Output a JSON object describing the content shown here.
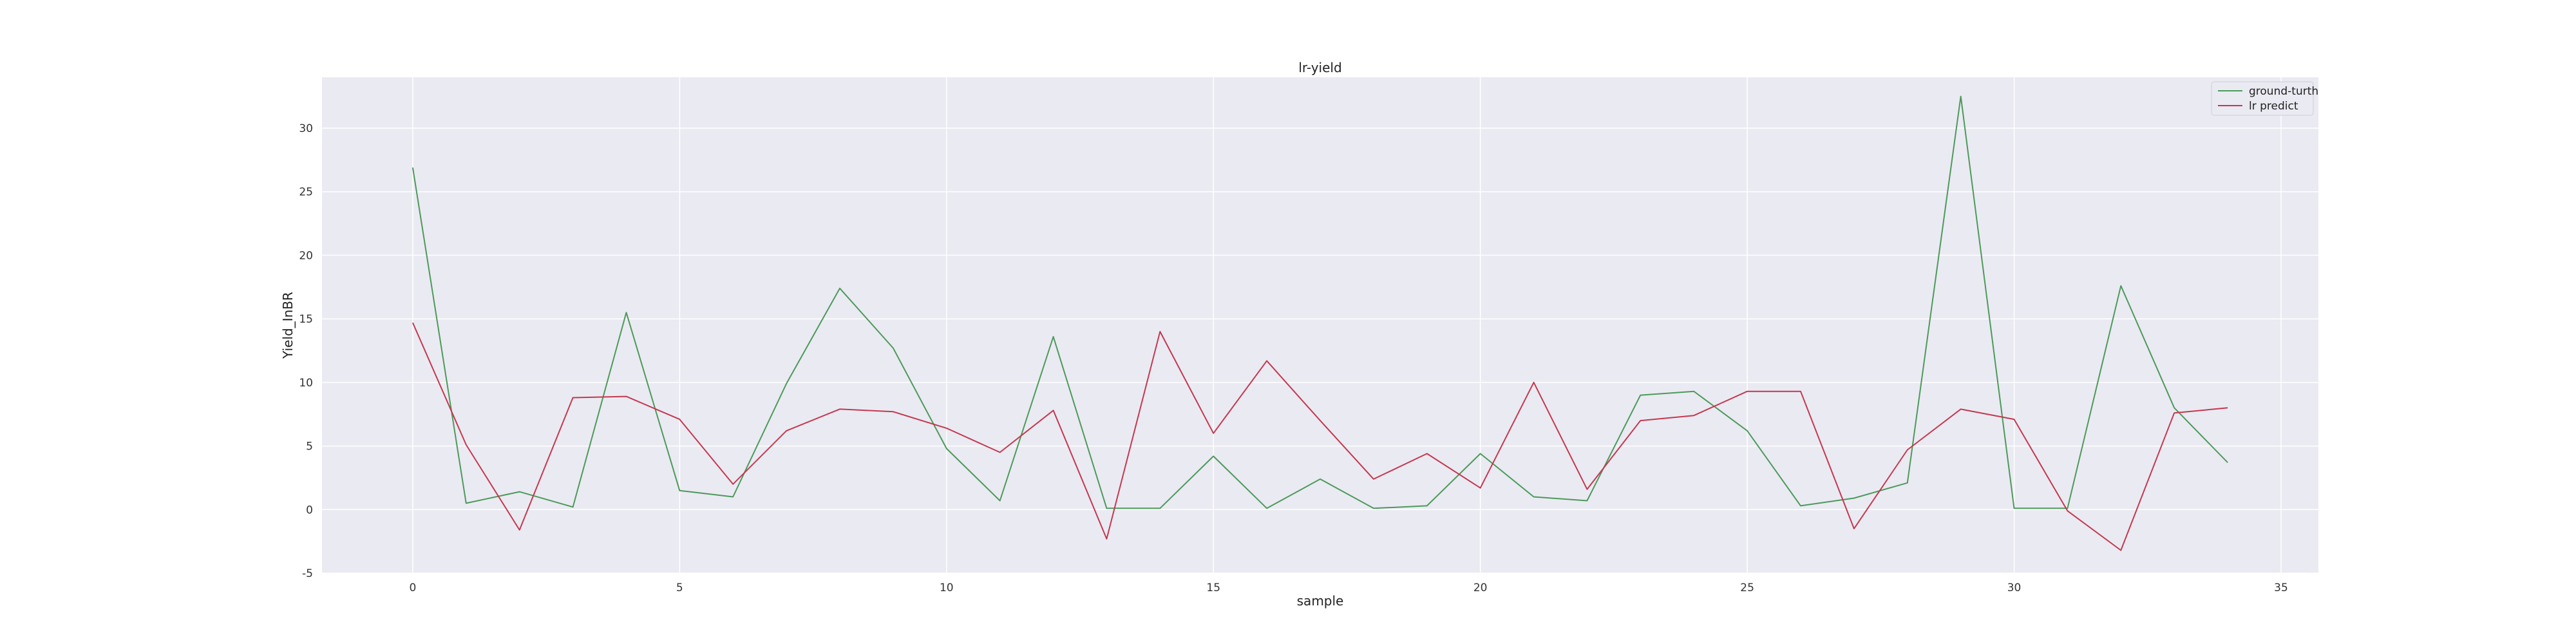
{
  "chart_data": {
    "type": "line",
    "title": "lr-yield",
    "xlabel": "sample",
    "ylabel": "Yield_InBR",
    "xlim": [
      -1.7,
      35.7
    ],
    "ylim": [
      -5,
      34
    ],
    "xticks": [
      0,
      5,
      10,
      15,
      20,
      25,
      30,
      35
    ],
    "yticks": [
      -5,
      0,
      5,
      10,
      15,
      20,
      25,
      30
    ],
    "grid": true,
    "legend_position": "top-right",
    "series": [
      {
        "name": "ground-turth",
        "color": "#4c9a5a",
        "x": [
          0,
          1,
          2,
          3,
          4,
          5,
          6,
          7,
          8,
          9,
          10,
          11,
          12,
          13,
          14,
          15,
          16,
          17,
          18,
          19,
          20,
          21,
          22,
          23,
          24,
          25,
          26,
          27,
          28,
          29,
          30,
          31,
          32,
          33,
          34
        ],
        "values": [
          26.9,
          0.5,
          1.4,
          0.2,
          15.5,
          1.5,
          1.0,
          9.9,
          17.4,
          12.7,
          4.8,
          0.7,
          13.6,
          0.1,
          0.1,
          4.2,
          0.1,
          2.4,
          0.1,
          0.3,
          4.4,
          1.0,
          0.7,
          9.0,
          9.3,
          6.2,
          0.3,
          0.9,
          2.1,
          32.5,
          0.1,
          0.1,
          17.6,
          8.0,
          3.7
        ]
      },
      {
        "name": "lr predict",
        "color": "#c4384f",
        "x": [
          0,
          1,
          2,
          3,
          4,
          5,
          6,
          7,
          8,
          9,
          10,
          11,
          12,
          13,
          14,
          15,
          16,
          17,
          18,
          19,
          20,
          21,
          22,
          23,
          24,
          25,
          26,
          27,
          28,
          29,
          30,
          31,
          32,
          33,
          34
        ],
        "values": [
          14.7,
          5.1,
          -1.6,
          8.8,
          8.9,
          7.1,
          2.0,
          6.2,
          7.9,
          7.7,
          6.4,
          4.5,
          7.8,
          -2.3,
          14.0,
          6.0,
          11.7,
          7.0,
          2.4,
          4.4,
          1.7,
          10.0,
          1.6,
          7.0,
          7.4,
          9.3,
          9.3,
          -1.5,
          4.7,
          7.9,
          7.1,
          -0.1,
          -3.2,
          7.6,
          8.0
        ]
      }
    ]
  }
}
